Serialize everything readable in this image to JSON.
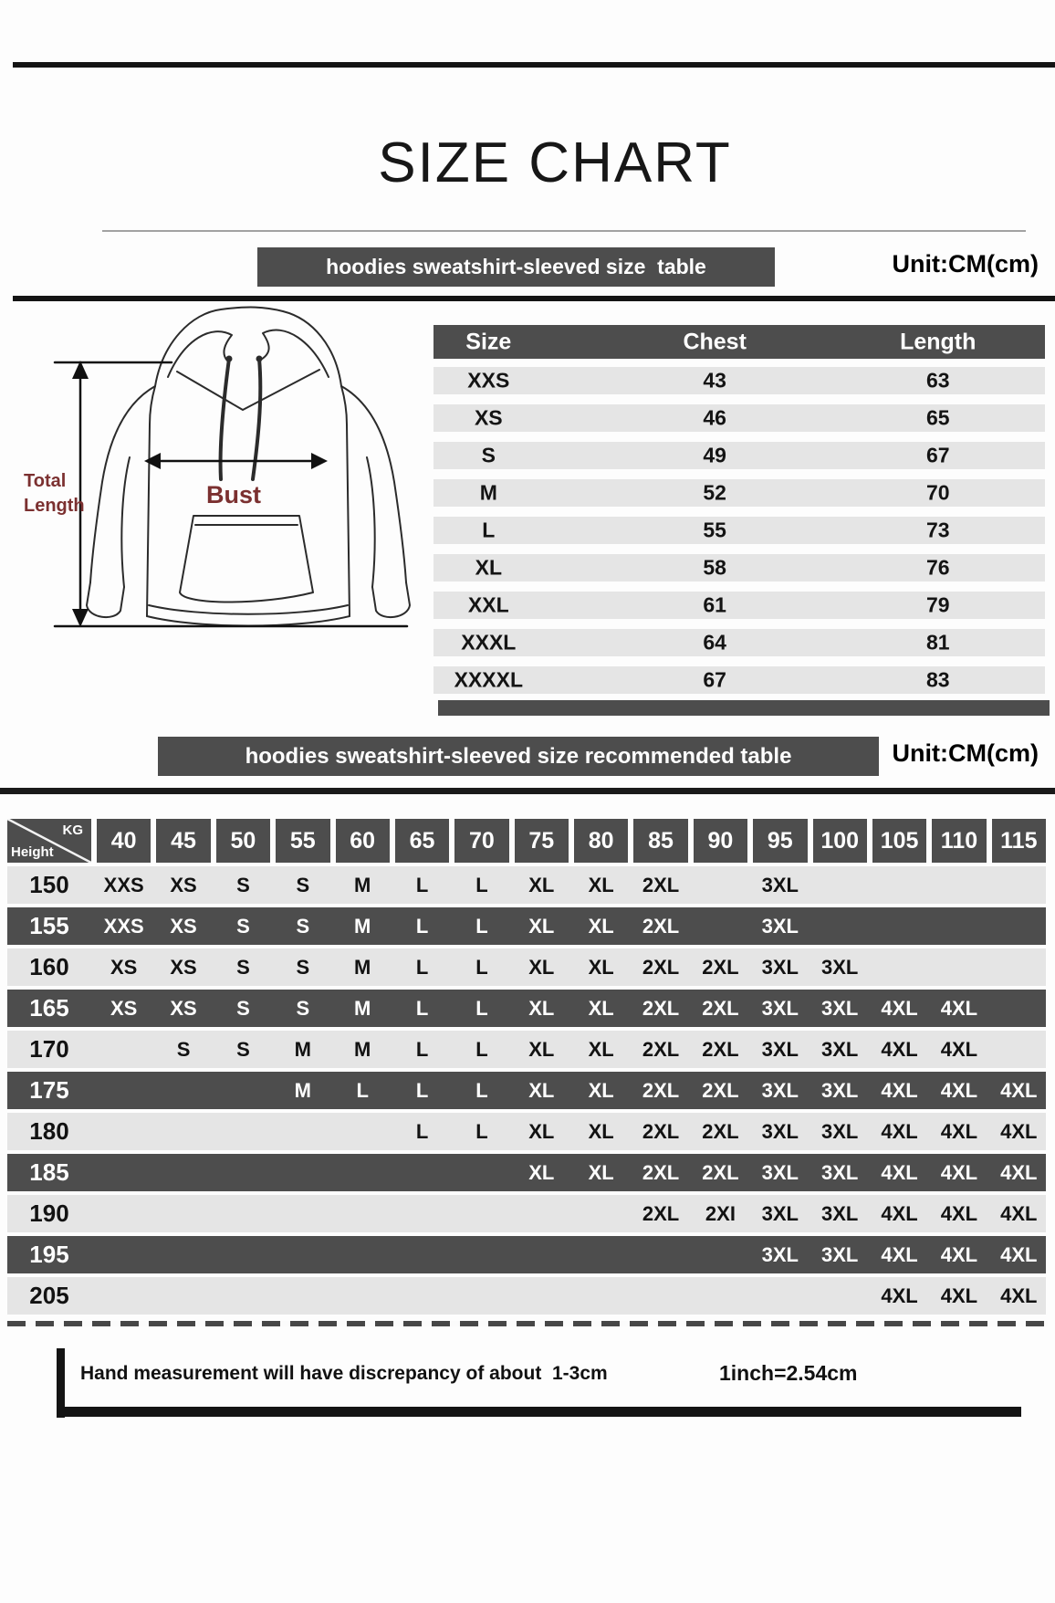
{
  "title": "SIZE CHART",
  "colors": {
    "dark_bar": "#4d4d4d",
    "light_band": "#e5e5e5",
    "accent_maroon": "#7b3030"
  },
  "section1": {
    "header": "hoodies sweatshirt-sleeved size  table",
    "unit": "Unit:CM(cm)",
    "diagram": {
      "bust_label": "Bust",
      "total_length_line1": "Total",
      "total_length_line2": "Length"
    },
    "table": {
      "columns": [
        "Size",
        "Chest",
        "Length"
      ],
      "rows": [
        [
          "XXS",
          "43",
          "63"
        ],
        [
          "XS",
          "46",
          "65"
        ],
        [
          "S",
          "49",
          "67"
        ],
        [
          "M",
          "52",
          "70"
        ],
        [
          "L",
          "55",
          "73"
        ],
        [
          "XL",
          "58",
          "76"
        ],
        [
          "XXL",
          "61",
          "79"
        ],
        [
          "XXXL",
          "64",
          "81"
        ],
        [
          "XXXXL",
          "67",
          "83"
        ]
      ]
    }
  },
  "section2": {
    "header": "hoodies sweatshirt-sleeved size recommended table",
    "unit": "Unit:CM(cm)",
    "matrix": {
      "corner": {
        "top": "KG",
        "bottom": "Height"
      },
      "kg_columns": [
        "40",
        "45",
        "50",
        "55",
        "60",
        "65",
        "70",
        "75",
        "80",
        "85",
        "90",
        "95",
        "100",
        "105",
        "110",
        "115"
      ],
      "rows": [
        {
          "height": "150",
          "cells": [
            "XXS",
            "XS",
            "S",
            "S",
            "M",
            "L",
            "L",
            "XL",
            "XL",
            "2XL",
            "",
            "3XL",
            "",
            "",
            "",
            ""
          ]
        },
        {
          "height": "155",
          "cells": [
            "XXS",
            "XS",
            "S",
            "S",
            "M",
            "L",
            "L",
            "XL",
            "XL",
            "2XL",
            "",
            "3XL",
            "",
            "",
            "",
            ""
          ]
        },
        {
          "height": "160",
          "cells": [
            "XS",
            "XS",
            "S",
            "S",
            "M",
            "L",
            "L",
            "XL",
            "XL",
            "2XL",
            "2XL",
            "3XL",
            "3XL",
            "",
            "",
            ""
          ]
        },
        {
          "height": "165",
          "cells": [
            "XS",
            "XS",
            "S",
            "S",
            "M",
            "L",
            "L",
            "XL",
            "XL",
            "2XL",
            "2XL",
            "3XL",
            "3XL",
            "4XL",
            "4XL",
            ""
          ]
        },
        {
          "height": "170",
          "cells": [
            "",
            "S",
            "S",
            "M",
            "M",
            "L",
            "L",
            "XL",
            "XL",
            "2XL",
            "2XL",
            "3XL",
            "3XL",
            "4XL",
            "4XL",
            ""
          ]
        },
        {
          "height": "175",
          "cells": [
            "",
            "",
            "",
            "M",
            "L",
            "L",
            "L",
            "XL",
            "XL",
            "2XL",
            "2XL",
            "3XL",
            "3XL",
            "4XL",
            "4XL",
            "4XL"
          ]
        },
        {
          "height": "180",
          "cells": [
            "",
            "",
            "",
            "",
            "",
            "L",
            "L",
            "XL",
            "XL",
            "2XL",
            "2XL",
            "3XL",
            "3XL",
            "4XL",
            "4XL",
            "4XL"
          ]
        },
        {
          "height": "185",
          "cells": [
            "",
            "",
            "",
            "",
            "",
            "",
            "",
            "XL",
            "XL",
            "2XL",
            "2XL",
            "3XL",
            "3XL",
            "4XL",
            "4XL",
            "4XL"
          ]
        },
        {
          "height": "190",
          "cells": [
            "",
            "",
            "",
            "",
            "",
            "",
            "",
            "",
            "",
            "2XL",
            "2XI",
            "3XL",
            "3XL",
            "4XL",
            "4XL",
            "4XL"
          ]
        },
        {
          "height": "195",
          "cells": [
            "",
            "",
            "",
            "",
            "",
            "",
            "",
            "",
            "",
            "",
            "",
            "3XL",
            "3XL",
            "4XL",
            "4XL",
            "4XL"
          ]
        },
        {
          "height": "205",
          "cells": [
            "",
            "",
            "",
            "",
            "",
            "",
            "",
            "",
            "",
            "",
            "",
            "",
            "",
            "4XL",
            "4XL",
            "4XL"
          ]
        }
      ]
    }
  },
  "footer": {
    "note": "Hand measurement will have discrepancy of about  1-3cm",
    "conversion": "1inch=2.54cm"
  }
}
